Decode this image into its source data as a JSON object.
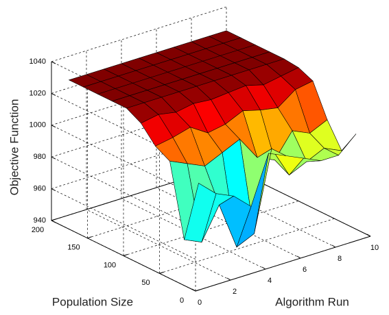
{
  "chart_data": {
    "type": "surface",
    "zlabel": "Objective Function",
    "ylabel": "Population Size",
    "xlabel": "Algorithm Run",
    "x": [
      1,
      2,
      3,
      4,
      5,
      6,
      7,
      8,
      9,
      10
    ],
    "y": [
      20,
      40,
      60,
      80,
      100,
      120,
      140,
      160,
      180,
      200
    ],
    "z": [
      [
        1000,
        990,
        985,
        975,
        1005,
        1000,
        995,
        990,
        990,
        1000
      ],
      [
        960,
        955,
        975,
        945,
        950,
        1000,
        980,
        985,
        990,
        985
      ],
      [
        1005,
        1000,
        995,
        1000,
        1005,
        990,
        985,
        1000,
        995,
        1000
      ],
      [
        1010,
        1012,
        1015,
        1008,
        1010,
        1015,
        1012,
        1010,
        1018,
        1020
      ],
      [
        1020,
        1022,
        1020,
        1022,
        1021,
        1022,
        1023,
        1020,
        1022,
        1024
      ],
      [
        1025,
        1025,
        1025,
        1025,
        1025,
        1025,
        1025,
        1025,
        1025,
        1025
      ],
      [
        1025,
        1025,
        1025,
        1025,
        1025,
        1025,
        1025,
        1025,
        1025,
        1025
      ],
      [
        1025,
        1025,
        1025,
        1025,
        1025,
        1025,
        1025,
        1025,
        1025,
        1025
      ],
      [
        1025,
        1025,
        1025,
        1025,
        1025,
        1025,
        1025,
        1025,
        1025,
        1025
      ],
      [
        1025,
        1025,
        1025,
        1025,
        1025,
        1025,
        1025,
        1025,
        1025,
        1025
      ]
    ],
    "xlim": [
      0,
      10
    ],
    "ylim": [
      0,
      200
    ],
    "zlim": [
      940,
      1040
    ],
    "xticks": [
      0,
      2,
      4,
      6,
      8,
      10
    ],
    "yticks": [
      0,
      50,
      100,
      150,
      200
    ],
    "zticks": [
      940,
      960,
      980,
      1000,
      1020,
      1040
    ],
    "grid": true,
    "colormap": "jet"
  }
}
